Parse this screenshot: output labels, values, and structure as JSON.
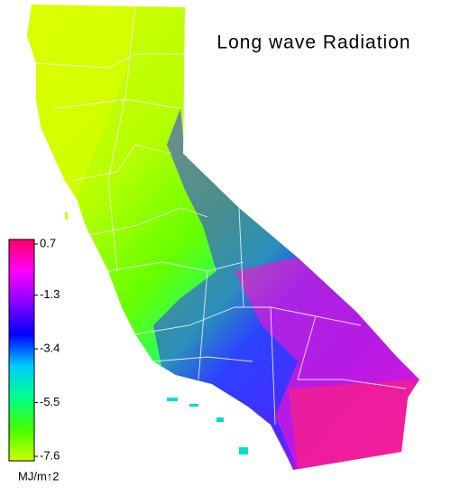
{
  "title": "Long wave Radiation",
  "colorbar": {
    "lim": [
      -7.6,
      0.7
    ],
    "ticks": [
      0.7,
      -1.3,
      -3.4,
      -5.5,
      -7.6
    ],
    "unit": "MJ/m↑2",
    "colors": [
      "#ccff00",
      "#44ff00",
      "#00ff88",
      "#00ccff",
      "#0000ff",
      "#8800ff",
      "#ff00ff",
      "#ff0066"
    ]
  }
}
